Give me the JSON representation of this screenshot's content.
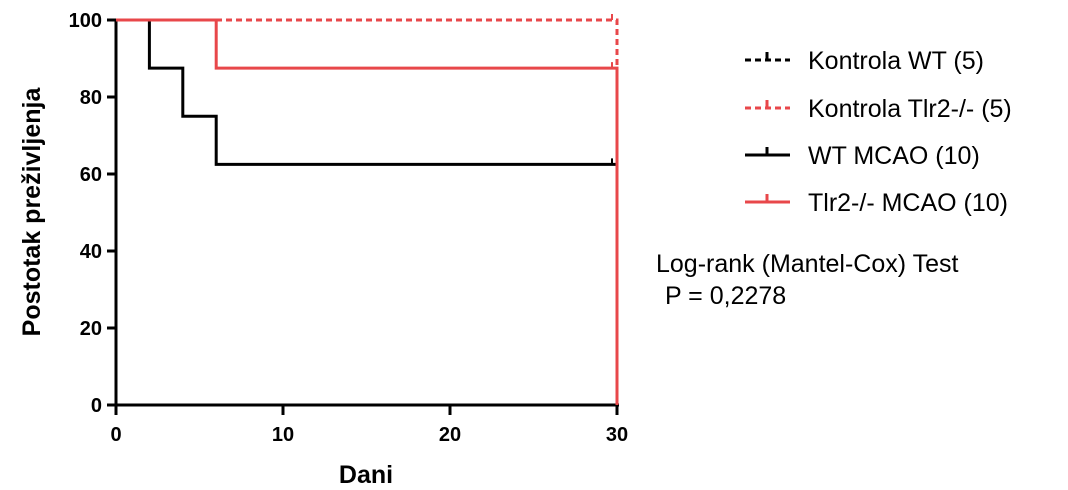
{
  "chart_data": {
    "type": "line",
    "subtype": "kaplan-meier survival",
    "xlabel": "Dani",
    "ylabel": "Postotak preživljenja",
    "xlim": [
      0,
      30
    ],
    "ylim": [
      0,
      100
    ],
    "xticks": [
      0,
      10,
      20,
      30
    ],
    "yticks": [
      0,
      20,
      40,
      60,
      80,
      100
    ],
    "grid": false,
    "legend_position": "right",
    "series": [
      {
        "name": "Kontrola WT (5)",
        "color": "#000000",
        "style": "dotted",
        "x": [
          0,
          30,
          30
        ],
        "y": [
          100,
          100,
          0
        ]
      },
      {
        "name": "Kontrola Tlr2-/- (5)",
        "color": "#e8474a",
        "style": "dotted",
        "x": [
          0,
          30,
          30
        ],
        "y": [
          100,
          100,
          0
        ]
      },
      {
        "name": "WT  MCAO (10)",
        "color": "#000000",
        "style": "solid",
        "x": [
          0,
          2,
          4,
          6,
          30,
          30
        ],
        "y": [
          100,
          87.5,
          75,
          62.5,
          62.5,
          0
        ]
      },
      {
        "name": "Tlr2-/- MCAO (10)",
        "color": "#e8474a",
        "style": "solid",
        "x": [
          0,
          6,
          30,
          30
        ],
        "y": [
          100,
          87.5,
          87.5,
          0
        ]
      }
    ],
    "annotations": [
      "Log-rank (Mantel-Cox) Test",
      "P = 0,2278"
    ]
  }
}
